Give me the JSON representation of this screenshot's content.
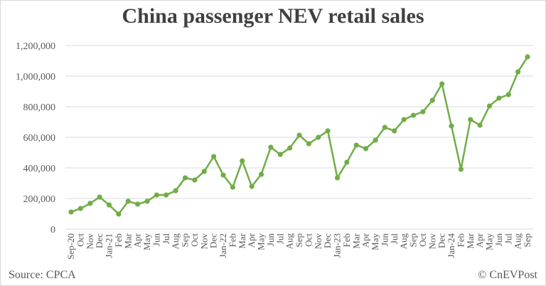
{
  "chart_data": {
    "type": "line",
    "title": "China passenger NEV retail sales",
    "xlabel": "",
    "ylabel": "",
    "ylim": [
      0,
      1200000
    ],
    "yticks": [
      0,
      200000,
      400000,
      600000,
      800000,
      1000000,
      1200000
    ],
    "ytick_labels": [
      "0",
      "200,000",
      "400,000",
      "600,000",
      "800,000",
      "1,000,000",
      "1,200,000"
    ],
    "grid": true,
    "legend": "none",
    "line_color": "#70ad47",
    "categories": [
      "Sep-20",
      "Oct",
      "Nov",
      "Dec",
      "Jan-21",
      "Feb",
      "Mar",
      "Apr",
      "May",
      "Jun",
      "Jul",
      "Aug",
      "Sep",
      "Oct",
      "Nov",
      "Dec",
      "Jan-22",
      "Feb",
      "Mar",
      "Apr",
      "May",
      "Jun",
      "Jul",
      "Aug",
      "Sep",
      "Oct",
      "Nov",
      "Dec",
      "Jan-23",
      "Feb",
      "Mar",
      "Apr",
      "May",
      "Jun",
      "Jul",
      "Aug",
      "Sep",
      "Oct",
      "Nov",
      "Dec",
      "Jan-24",
      "Feb",
      "Mar",
      "Apr",
      "May",
      "Jun",
      "Jul",
      "Aug",
      "Sep"
    ],
    "series": [
      {
        "name": "NEV retail sales",
        "values": [
          112000,
          135000,
          168000,
          209000,
          158000,
          98000,
          182000,
          163000,
          182000,
          223000,
          223000,
          251000,
          335000,
          321000,
          377000,
          474000,
          353000,
          274000,
          446000,
          279000,
          358000,
          535000,
          488000,
          530000,
          614000,
          558000,
          600000,
          642000,
          335000,
          437000,
          549000,
          526000,
          581000,
          665000,
          642000,
          716000,
          744000,
          767000,
          842000,
          949000,
          674000,
          391000,
          716000,
          679000,
          805000,
          856000,
          879000,
          1028000,
          1126000
        ]
      }
    ]
  },
  "footer": {
    "source": "Source: CPCA",
    "credit": "© CnEVPost"
  }
}
